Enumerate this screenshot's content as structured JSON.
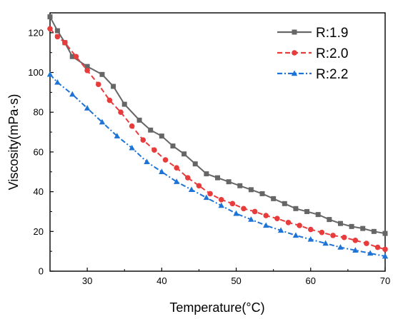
{
  "chart_data": {
    "type": "line",
    "xlabel": "Temperature(°C)",
    "ylabel": "Viscosity(mPa·s)",
    "xlim": [
      25,
      70
    ],
    "ylim": [
      0,
      130
    ],
    "xticks": [
      30,
      40,
      50,
      60,
      70
    ],
    "yticks": [
      0,
      20,
      40,
      60,
      80,
      100,
      120
    ],
    "grid": false,
    "legend_position": "top-right",
    "series": [
      {
        "name": "R:1.9",
        "color": "#666666",
        "marker": "square",
        "line_style": "solid",
        "x": [
          25,
          26,
          27,
          28,
          30,
          32,
          33.5,
          35,
          37,
          38.5,
          40,
          41.5,
          43,
          44.5,
          46,
          47.5,
          49,
          50.5,
          52,
          53.5,
          55,
          56.5,
          58,
          59.5,
          61,
          62.5,
          64,
          65.5,
          67,
          68.5,
          70
        ],
        "y": [
          128,
          121,
          115,
          108,
          103,
          99,
          93,
          84,
          76,
          71,
          68,
          63,
          59,
          54,
          49,
          47,
          45,
          43,
          41,
          39,
          36.5,
          34,
          31.5,
          30,
          28.5,
          26,
          24,
          22.5,
          21.5,
          20,
          19
        ]
      },
      {
        "name": "R:2.0",
        "color": "#e83b3b",
        "marker": "circle",
        "line_style": "dash",
        "x": [
          25,
          26,
          27,
          28.5,
          30,
          31.5,
          33,
          34.5,
          36,
          37.5,
          39,
          40.5,
          42,
          43.5,
          45,
          46.5,
          48,
          49.5,
          51,
          52.5,
          54,
          55.5,
          57,
          58.5,
          60,
          61.5,
          63,
          64.5,
          66,
          67.5,
          69,
          70
        ],
        "y": [
          122,
          118,
          115,
          108,
          101,
          94,
          86,
          80,
          73,
          66,
          61,
          56,
          52,
          47,
          43,
          39,
          36,
          34,
          31.5,
          30,
          28,
          26.5,
          24.5,
          23,
          21,
          19.5,
          18,
          17,
          15.5,
          14,
          12,
          11
        ]
      },
      {
        "name": "R:2.2",
        "color": "#1e74d6",
        "marker": "triangle",
        "line_style": "dashdot",
        "x": [
          25,
          26,
          28,
          30,
          32,
          34,
          36,
          38,
          40,
          42,
          44,
          46,
          48,
          50,
          52,
          54,
          56,
          58,
          60,
          62,
          64,
          66,
          68,
          70
        ],
        "y": [
          99,
          95,
          89,
          82,
          75,
          68,
          62,
          55,
          50,
          45,
          41,
          37,
          33,
          29,
          26,
          23,
          20.5,
          18,
          16,
          14,
          12,
          10.5,
          9,
          7.5
        ]
      }
    ]
  }
}
